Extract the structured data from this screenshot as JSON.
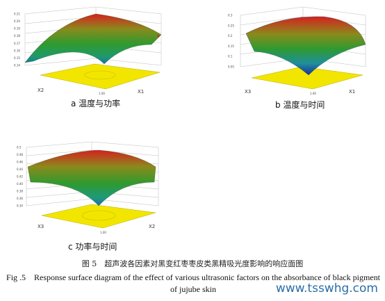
{
  "chart_data": [
    {
      "type": "surface",
      "subtitle": "a 温度与功率",
      "xlabel": "X1",
      "ylabel": "X2",
      "axis_tick": "1.00",
      "z_ticks": [
        "0.21",
        "0.20",
        "0.19",
        "0.18",
        "0.17",
        "0.16",
        "0.15",
        "0.14"
      ],
      "z_range": [
        0.14,
        0.21
      ]
    },
    {
      "type": "surface",
      "subtitle": "b 温度与时间",
      "xlabel": "X1",
      "ylabel": "X3",
      "axis_tick": "1.00",
      "z_ticks": [
        "0.3",
        "0.25",
        "0.2",
        "0.15",
        "0.1",
        "0.05"
      ],
      "z_range": [
        0.05,
        0.3
      ]
    },
    {
      "type": "surface",
      "subtitle": "c 功率与时间",
      "xlabel": "X2",
      "ylabel": "X3",
      "axis_tick": "1.00",
      "z_ticks": [
        "0.5",
        "0.48",
        "0.46",
        "0.44",
        "0.42",
        "0.40",
        "0.38",
        "0.36",
        "0.34"
      ],
      "z_range": [
        0.34,
        0.5
      ]
    }
  ],
  "caption": {
    "chinese": "图 5　超声波各因素对黑变红枣枣皮类黑精吸光度影响的响应面图",
    "english": "Fig .5　Response surface diagram of the effect of various ultrasonic factors on the absorbance of black pigment of jujube skin"
  },
  "watermark": "www.tsswhg.com",
  "colors": {
    "surface_high": "#d62020",
    "surface_mid": "#2f9a2f",
    "surface_low": "#1a2fa0",
    "floor": "#f2e600"
  }
}
